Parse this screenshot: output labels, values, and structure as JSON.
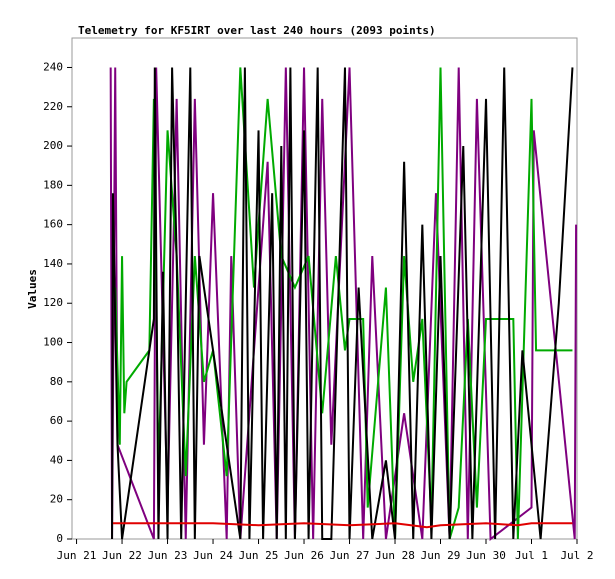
{
  "chart_data": {
    "type": "line",
    "title": "Telemetry for KF5IRT over last 240 hours (2093 points)",
    "ylabel": "Values",
    "xlim": [
      -0.1,
      11
    ],
    "xticks": [
      {
        "value": 0,
        "label": "Jun 21"
      },
      {
        "value": 1,
        "label": "Jun 22"
      },
      {
        "value": 2,
        "label": "Jun 23"
      },
      {
        "value": 3,
        "label": "Jun 24"
      },
      {
        "value": 4,
        "label": "Jun 25"
      },
      {
        "value": 5,
        "label": "Jun 26"
      },
      {
        "value": 6,
        "label": "Jun 27"
      },
      {
        "value": 7,
        "label": "Jun 28"
      },
      {
        "value": 8,
        "label": "Jun 29"
      },
      {
        "value": 9,
        "label": "Jun 30"
      },
      {
        "value": 10,
        "label": "Jul 1"
      },
      {
        "value": 11,
        "label": "Jul 2"
      }
    ],
    "ylim": [
      0,
      255
    ],
    "yticks": [
      0,
      20,
      40,
      60,
      80,
      100,
      120,
      140,
      160,
      180,
      200,
      220,
      240
    ],
    "grid": false,
    "series": [
      {
        "color": "#7f007f",
        "x": [
          0.75,
          0.78,
          0.85,
          0.9,
          1.7,
          1.75,
          2.0,
          2.2,
          2.4,
          2.6,
          2.8,
          3.0,
          3.3,
          3.4,
          3.6,
          4.2,
          4.4,
          4.6,
          4.8,
          5.0,
          5.2,
          5.4,
          5.6,
          6.0,
          6.3,
          6.5,
          6.8,
          7.2,
          7.6,
          7.9,
          8.2,
          8.4,
          8.6,
          8.8,
          9.1,
          10.0,
          10.05,
          10.95,
          10.98
        ],
        "values": [
          240,
          0,
          240,
          48,
          0,
          240,
          16,
          224,
          0,
          224,
          48,
          176,
          0,
          144,
          0,
          192,
          0,
          240,
          0,
          240,
          0,
          224,
          48,
          240,
          0,
          144,
          0,
          64,
          0,
          176,
          0,
          240,
          0,
          224,
          0,
          16,
          208,
          0,
          160
        ]
      },
      {
        "color": "#00aa00",
        "x": [
          0.85,
          0.95,
          1.0,
          1.05,
          1.1,
          1.6,
          1.7,
          1.8,
          2.0,
          2.2,
          2.4,
          2.6,
          2.8,
          3.0,
          3.3,
          3.6,
          3.9,
          4.2,
          4.5,
          4.8,
          5.1,
          5.4,
          5.7,
          5.9,
          6.0,
          6.3,
          6.4,
          6.8,
          7.0,
          7.2,
          7.4,
          7.6,
          7.8,
          8.0,
          8.2,
          8.4,
          8.6,
          8.8,
          9.0,
          9.6,
          9.7,
          10.0,
          10.1,
          10.2,
          10.9
        ],
        "values": [
          128,
          48,
          144,
          64,
          80,
          96,
          224,
          32,
          208,
          144,
          32,
          144,
          80,
          96,
          32,
          240,
          128,
          224,
          144,
          128,
          144,
          64,
          144,
          96,
          112,
          112,
          16,
          128,
          0,
          144,
          80,
          112,
          8,
          240,
          0,
          16,
          112,
          16,
          112,
          112,
          0,
          224,
          96,
          96,
          96
        ]
      },
      {
        "color": "#000000",
        "x": [
          0.78,
          0.8,
          0.9,
          1.0,
          1.7,
          1.72,
          1.8,
          1.9,
          2.0,
          2.1,
          2.2,
          2.3,
          2.5,
          2.6,
          2.7,
          3.6,
          3.7,
          3.8,
          4.0,
          4.1,
          4.3,
          4.4,
          4.5,
          4.6,
          4.7,
          4.8,
          5.0,
          5.1,
          5.3,
          5.4,
          5.6,
          5.9,
          6.0,
          6.2,
          6.5,
          6.8,
          7.0,
          7.2,
          7.4,
          7.6,
          7.8,
          8.0,
          8.2,
          8.5,
          8.7,
          9.0,
          9.2,
          9.4,
          9.6,
          9.8,
          10.2,
          10.6,
          10.9
        ],
        "values": [
          0,
          176,
          48,
          0,
          112,
          240,
          0,
          136,
          0,
          240,
          144,
          0,
          240,
          0,
          144,
          0,
          240,
          0,
          208,
          0,
          176,
          0,
          200,
          0,
          240,
          0,
          208,
          0,
          240,
          0,
          0,
          240,
          0,
          128,
          0,
          40,
          0,
          192,
          0,
          160,
          0,
          144,
          0,
          200,
          0,
          224,
          0,
          240,
          0,
          96,
          0,
          120,
          240
        ]
      },
      {
        "color": "#e00000",
        "x": [
          0.8,
          2,
          3,
          4,
          5,
          6,
          7,
          7.7,
          8,
          9,
          9.7,
          10,
          10.9
        ],
        "values": [
          8,
          8,
          8,
          7,
          8,
          7,
          8,
          6,
          7,
          8,
          7,
          8,
          8
        ]
      }
    ]
  }
}
